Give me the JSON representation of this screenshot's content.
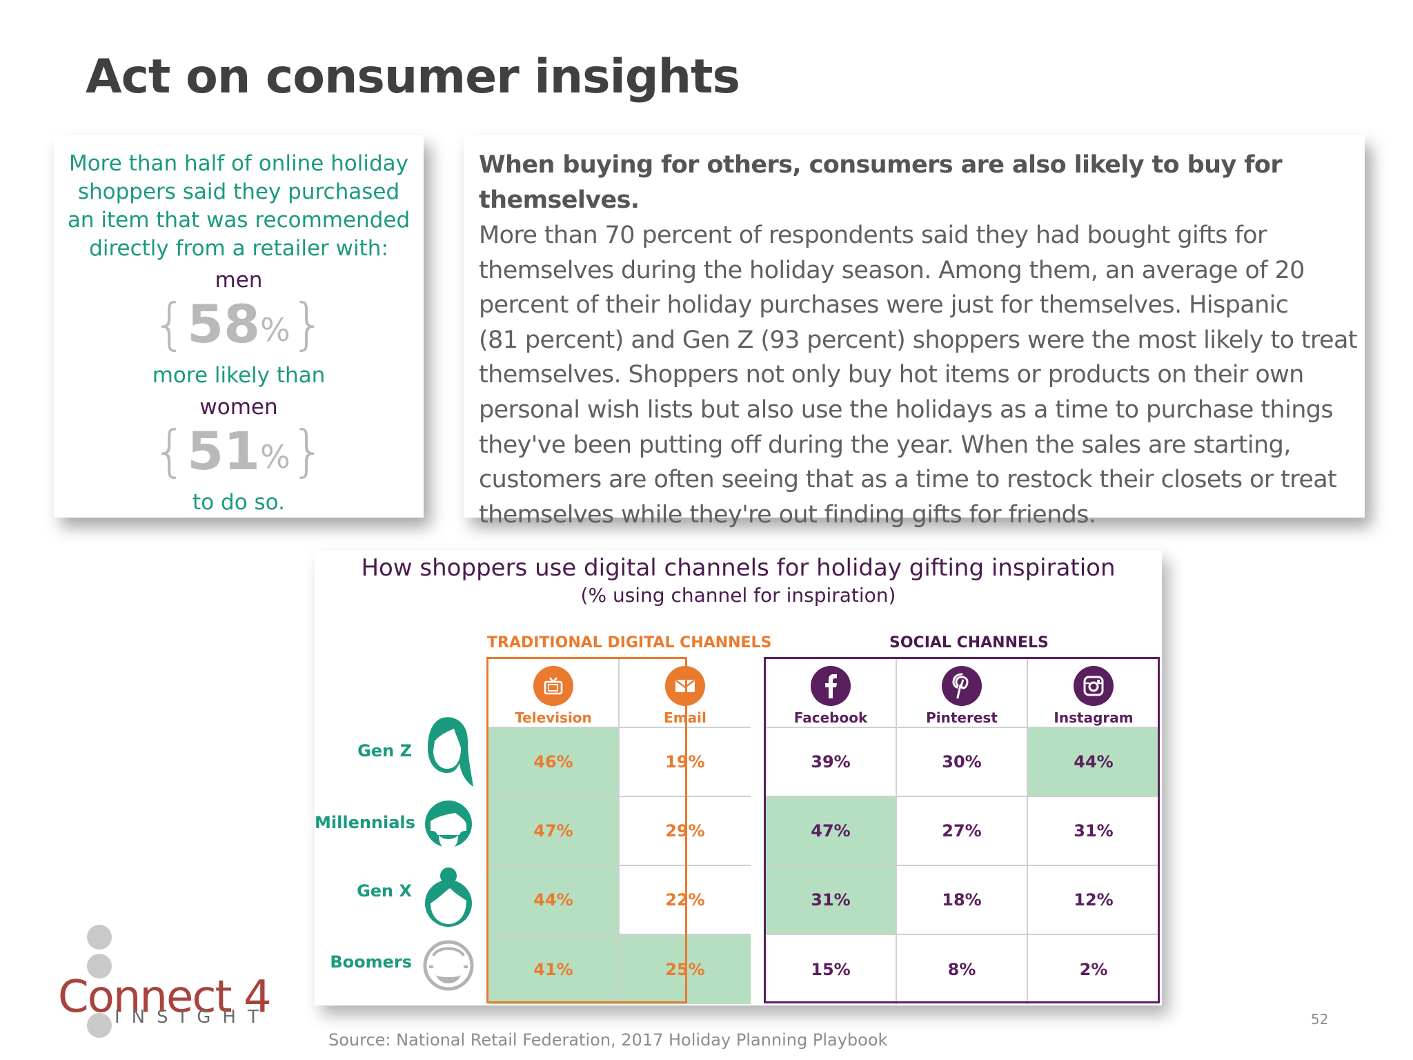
{
  "title": "Act on consumer insights",
  "stat_card": {
    "lead": [
      "More than half of online holiday",
      "shoppers said they purchased",
      "an item that was recommended",
      "directly from a retailer with:"
    ],
    "group1": "men",
    "value1": "58",
    "pct_sign": "%",
    "comparison": "more likely than",
    "group2": "women",
    "value2": "51",
    "closing": "to do so."
  },
  "text_card": {
    "heading": "When buying for others, consumers are also likely to buy for themselves.",
    "body_lines": [
      "More than 70 percent of respondents said they had bought gifts for",
      "themselves during the holiday season. Among them, an average of 20",
      "percent of their holiday purchases were just for themselves. Hispanic",
      "(81 percent) and Gen Z (93 percent) shoppers were the most likely to treat",
      "themselves. Shoppers not only buy hot items or products on their own",
      "personal wish lists but also use the holidays as a time to purchase things",
      "they've been putting off during the year. When the sales are starting,",
      "customers are often seeing that as a time to restock their closets or treat",
      "themselves while they're out finding gifts for friends."
    ]
  },
  "chart": {
    "title": "How shoppers use digital channels for holiday gifting inspiration",
    "subtitle": "(% using channel for inspiration)",
    "traditional_label": "TRADITIONAL DIGITAL CHANNELS",
    "social_label": "SOCIAL CHANNELS",
    "channels": [
      {
        "name": "Television",
        "icon": "tv-icon",
        "group": "traditional"
      },
      {
        "name": "Email",
        "icon": "envelope-icon",
        "group": "traditional"
      },
      {
        "name": "Facebook",
        "icon": "facebook-icon",
        "group": "social"
      },
      {
        "name": "Pinterest",
        "icon": "pinterest-icon",
        "group": "social"
      },
      {
        "name": "Instagram",
        "icon": "instagram-icon",
        "group": "social"
      }
    ],
    "generations": [
      "Gen Z",
      "Millennials",
      "Gen X",
      "Boomers"
    ],
    "cells": [
      [
        "46%",
        "19%",
        "39%",
        "30%",
        "44%"
      ],
      [
        "47%",
        "29%",
        "47%",
        "27%",
        "31%"
      ],
      [
        "44%",
        "22%",
        "31%",
        "18%",
        "12%"
      ],
      [
        "41%",
        "25%",
        "15%",
        "8%",
        "2%"
      ]
    ],
    "highlighted": [
      [
        true,
        false,
        false,
        false,
        true
      ],
      [
        true,
        false,
        true,
        false,
        false
      ],
      [
        true,
        false,
        true,
        false,
        false
      ],
      [
        true,
        true,
        false,
        false,
        false
      ]
    ],
    "colors": {
      "traditional": "#ea7a2e",
      "social": "#5a1f5e",
      "highlight": "#b6dfc2",
      "generation": "#1a9a7e",
      "boomer_avatar": "#b3b3b3"
    }
  },
  "chart_data": {
    "type": "table",
    "title": "How shoppers use digital channels for holiday gifting inspiration",
    "subtitle": "(% using channel for inspiration)",
    "columns": [
      "Television",
      "Email",
      "Facebook",
      "Pinterest",
      "Instagram"
    ],
    "rows": [
      "Gen Z",
      "Millennials",
      "Gen X",
      "Boomers"
    ],
    "values": [
      [
        46,
        19,
        39,
        30,
        44
      ],
      [
        47,
        29,
        47,
        27,
        31
      ],
      [
        44,
        22,
        31,
        18,
        12
      ],
      [
        41,
        25,
        15,
        8,
        2
      ]
    ]
  },
  "source": "Source: National Retail Federation, 2017 Holiday Planning Playbook",
  "page_number": "52",
  "logo": {
    "main": "Connect 4",
    "sub": "INSIGHT"
  }
}
